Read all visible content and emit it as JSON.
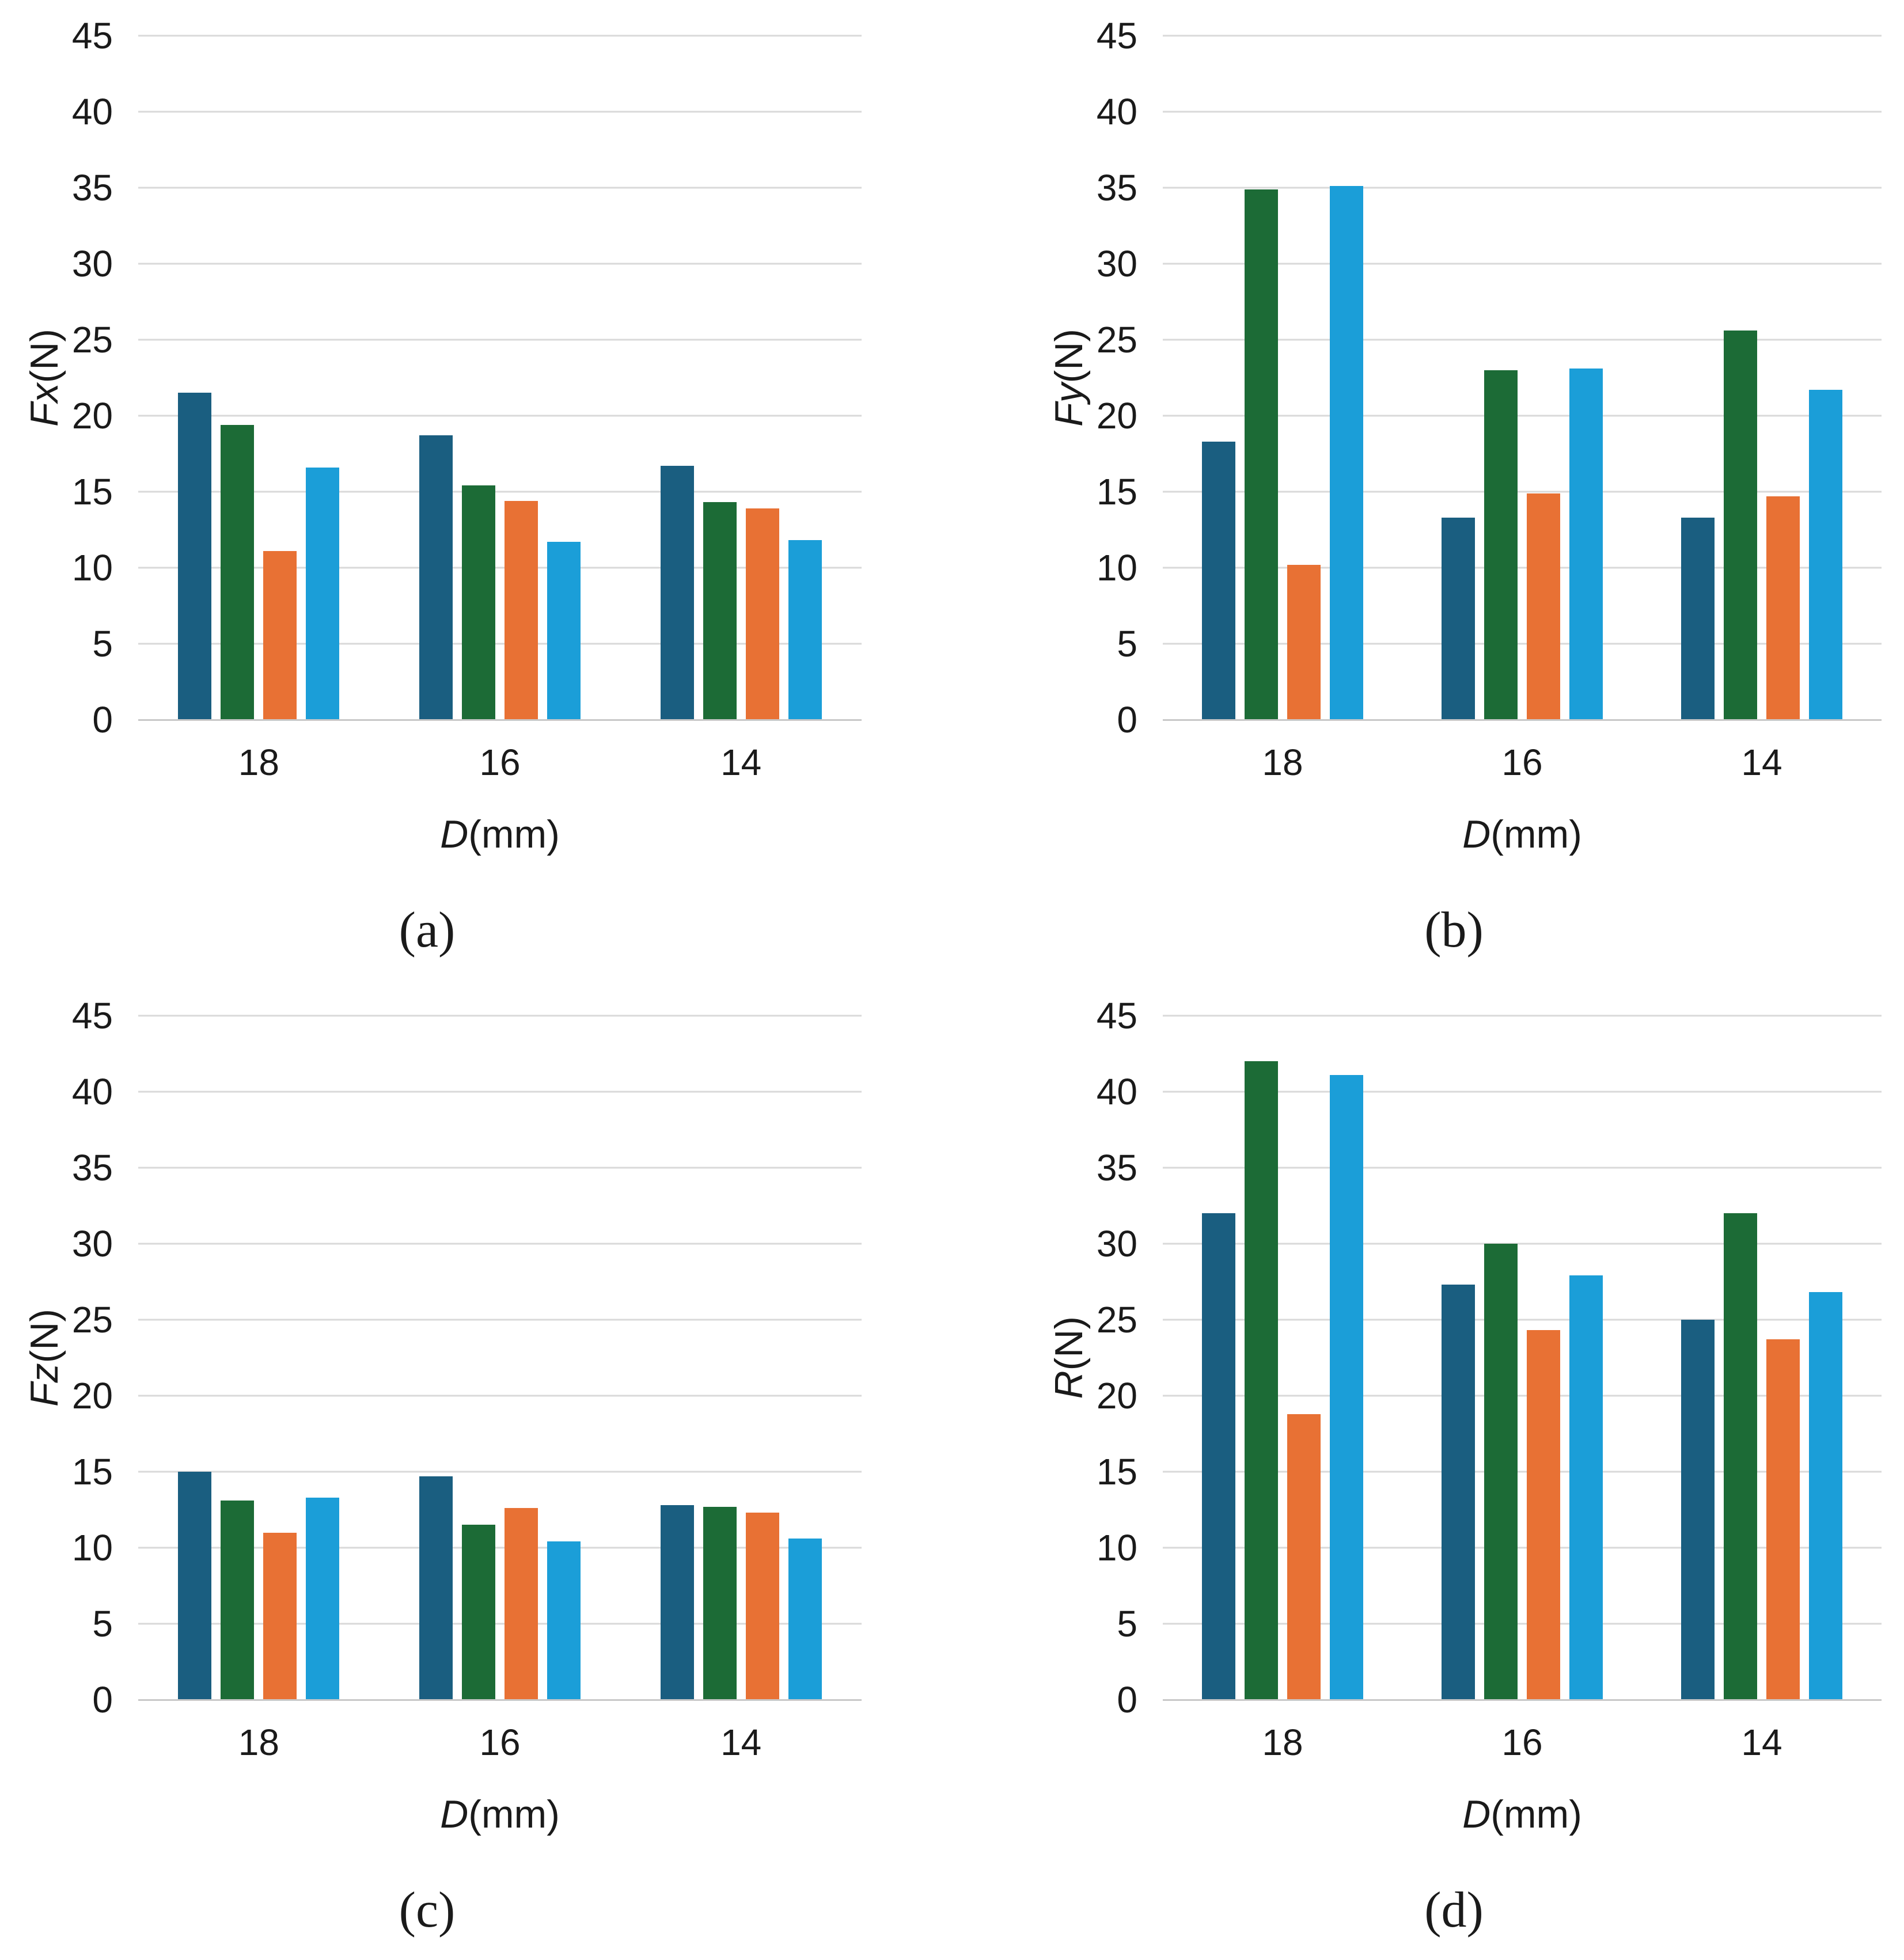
{
  "figure": {
    "background": "#ffffff",
    "grid_color": "#d9d9d9",
    "axis_line_color": "#c8c8c8",
    "text_color": "#1a1a1a"
  },
  "chart_data": [
    {
      "id": "a",
      "type": "bar",
      "caption": "(a)",
      "ylabel_prefix": "Fx",
      "ylabel_unit": "(N)",
      "xlabel_prefix": "D",
      "xlabel_unit": "(mm)",
      "categories": [
        "18",
        "16",
        "14"
      ],
      "ylim": [
        0,
        45
      ],
      "ytick_step": 5,
      "grid": true,
      "legend": "none",
      "series": [
        {
          "name": "dark-blue",
          "color": "#1A5E80",
          "values": [
            21.5,
            18.7,
            16.7
          ]
        },
        {
          "name": "green",
          "color": "#1C6B36",
          "values": [
            19.4,
            15.4,
            14.3
          ]
        },
        {
          "name": "orange",
          "color": "#E87134",
          "values": [
            11.1,
            14.4,
            13.9
          ]
        },
        {
          "name": "light-blue",
          "color": "#1B9ED8",
          "values": [
            16.6,
            11.7,
            11.8
          ]
        }
      ]
    },
    {
      "id": "b",
      "type": "bar",
      "caption": "(b)",
      "ylabel_prefix": "Fy",
      "ylabel_unit": "(N)",
      "xlabel_prefix": "D",
      "xlabel_unit": "(mm)",
      "categories": [
        "18",
        "16",
        "14"
      ],
      "ylim": [
        0,
        45
      ],
      "ytick_step": 5,
      "grid": true,
      "legend": "none",
      "series": [
        {
          "name": "dark-blue",
          "color": "#1A5E80",
          "values": [
            18.3,
            13.3,
            13.3
          ]
        },
        {
          "name": "green",
          "color": "#1C6B36",
          "values": [
            34.9,
            23.0,
            25.6
          ]
        },
        {
          "name": "orange",
          "color": "#E87134",
          "values": [
            10.2,
            14.9,
            14.7
          ]
        },
        {
          "name": "light-blue",
          "color": "#1B9ED8",
          "values": [
            35.1,
            23.1,
            21.7
          ]
        }
      ]
    },
    {
      "id": "c",
      "type": "bar",
      "caption": "(c)",
      "ylabel_prefix": "Fz",
      "ylabel_unit": "(N)",
      "xlabel_prefix": "D",
      "xlabel_unit": "(mm)",
      "categories": [
        "18",
        "16",
        "14"
      ],
      "ylim": [
        0,
        45
      ],
      "ytick_step": 5,
      "grid": true,
      "legend": "none",
      "series": [
        {
          "name": "dark-blue",
          "color": "#1A5E80",
          "values": [
            15.0,
            14.7,
            12.8
          ]
        },
        {
          "name": "green",
          "color": "#1C6B36",
          "values": [
            13.1,
            11.5,
            12.7
          ]
        },
        {
          "name": "orange",
          "color": "#E87134",
          "values": [
            11.0,
            12.6,
            12.3
          ]
        },
        {
          "name": "light-blue",
          "color": "#1B9ED8",
          "values": [
            13.3,
            10.4,
            10.6
          ]
        }
      ]
    },
    {
      "id": "d",
      "type": "bar",
      "caption": "(d)",
      "ylabel_prefix": "R",
      "ylabel_unit": "(N)",
      "xlabel_prefix": "D",
      "xlabel_unit": "(mm)",
      "categories": [
        "18",
        "16",
        "14"
      ],
      "ylim": [
        0,
        45
      ],
      "ytick_step": 5,
      "grid": true,
      "legend": "none",
      "series": [
        {
          "name": "dark-blue",
          "color": "#1A5E80",
          "values": [
            32.0,
            27.3,
            25.0
          ]
        },
        {
          "name": "green",
          "color": "#1C6B36",
          "values": [
            42.0,
            30.0,
            32.0
          ]
        },
        {
          "name": "orange",
          "color": "#E87134",
          "values": [
            18.8,
            24.3,
            23.7
          ]
        },
        {
          "name": "light-blue",
          "color": "#1B9ED8",
          "values": [
            41.1,
            27.9,
            26.8
          ]
        }
      ]
    }
  ]
}
